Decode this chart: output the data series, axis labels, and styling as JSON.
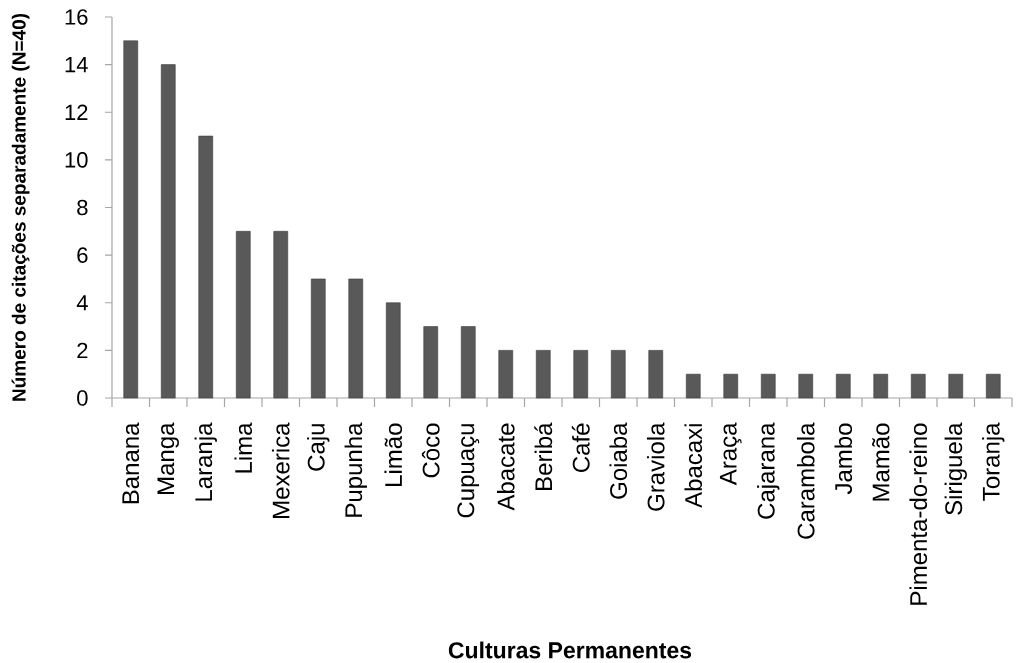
{
  "chart_data": {
    "type": "bar",
    "xlabel": "Culturas Permanentes",
    "ylabel": "Número de citações separadamente (N=40)",
    "categories": [
      "Banana",
      "Manga",
      "Laranja",
      "Lima",
      "Mexerica",
      "Caju",
      "Pupunha",
      "Limão",
      "Côco",
      "Cupuaçu",
      "Abacate",
      "Beribá",
      "Café",
      "Goiaba",
      "Graviola",
      "Abacaxi",
      "Araça",
      "Cajarana",
      "Carambola",
      "Jambo",
      "Mamão",
      "Pimenta-do-reino",
      "Siriguela",
      "Toranja"
    ],
    "values": [
      15,
      14,
      11,
      7,
      7,
      5,
      5,
      4,
      3,
      3,
      2,
      2,
      2,
      2,
      2,
      1,
      1,
      1,
      1,
      1,
      1,
      1,
      1,
      1
    ],
    "color": "#595959",
    "ylim": [
      0,
      16
    ],
    "yticks": [
      0,
      2,
      4,
      6,
      8,
      10,
      12,
      14,
      16
    ]
  }
}
